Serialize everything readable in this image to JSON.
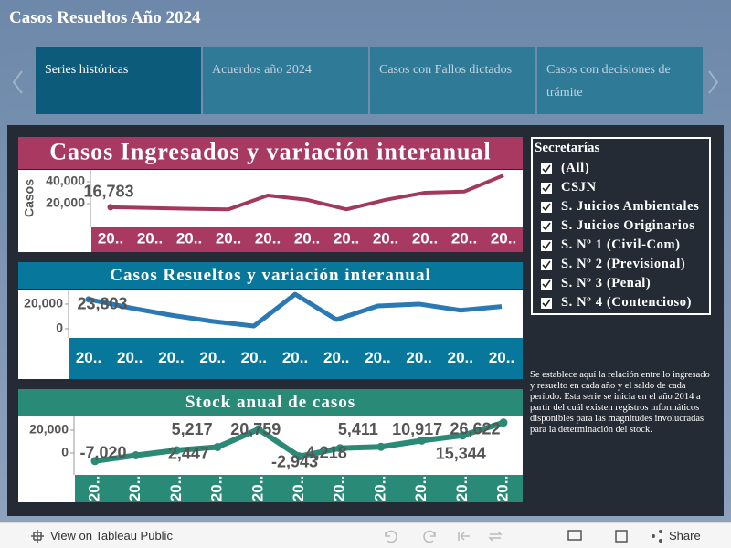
{
  "title": "Casos Resueltos Año 2024",
  "tabs": [
    "Series históricas",
    "Acuerdos  año 2024",
    "Casos con Fallos dictados",
    "Casos con decisiones de trámite"
  ],
  "filter": {
    "title": "Secretarías",
    "items": [
      "(All)",
      "CSJN",
      "S. Juicios Ambientales",
      "S. Juicios Originarios",
      "S. Nº 1 (Civil-Com)",
      "S. Nº 2 (Previsional)",
      "S. Nº 3 (Penal)",
      "S. Nº 4 (Contencioso)"
    ]
  },
  "note": "Se establece aquí la relación entre lo ingresado y resuelto en cada año y el saldo de cada período. Esta serie se inicia en el año 2014 a partir del cuál existen registros informáticos disponibles para las magnitudes involucradas para la determinación del stock.",
  "footer": {
    "link": "View on Tableau Public",
    "share": "Share"
  },
  "chart_data": [
    {
      "type": "line",
      "title": "Casos Ingresados y variación interanual",
      "y_label": "Casos",
      "categories": [
        "20..",
        "20..",
        "20..",
        "20..",
        "20..",
        "20..",
        "20..",
        "20..",
        "20..",
        "20..",
        "20.."
      ],
      "values": [
        16783,
        16000,
        15300,
        14800,
        27500,
        23500,
        14800,
        23500,
        30000,
        31000,
        45800
      ],
      "value_labels": [
        "16,783",
        null,
        null,
        null,
        null,
        null,
        null,
        null,
        null,
        null,
        null
      ],
      "color": "#a3385f",
      "ylim": [
        0,
        50000
      ],
      "yticks": [
        {
          "value": 20000,
          "label": "20,000"
        },
        {
          "value": 40000,
          "label": "40,000"
        }
      ]
    },
    {
      "type": "line",
      "title": "Casos Resueltos y variación interanual",
      "categories": [
        "20..",
        "20..",
        "20..",
        "20..",
        "20..",
        "20..",
        "20..",
        "20..",
        "20..",
        "20..",
        "20.."
      ],
      "values": [
        23803,
        17000,
        11000,
        6000,
        2200,
        28000,
        7400,
        18500,
        20000,
        15000,
        18000
      ],
      "value_labels": [
        "23,803",
        null,
        null,
        null,
        null,
        null,
        null,
        null,
        null,
        null,
        null
      ],
      "color": "#2a78b4",
      "ylim": [
        -7500,
        31000
      ],
      "yticks": [
        0,
        {
          "value": 20000,
          "label": "20,000"
        }
      ]
    },
    {
      "type": "line",
      "title": "Stock anual de casos",
      "categories": [
        "20..",
        "20..",
        "20..",
        "20..",
        "20..",
        "20..",
        "20..",
        "20..",
        "20..",
        "20..",
        "20.."
      ],
      "values": [
        -7020,
        -2000,
        2447,
        5217,
        20759,
        -2943,
        4218,
        5411,
        10917,
        15344,
        26622
      ],
      "value_labels": [
        "-7,020",
        null,
        "2,447",
        "5,217",
        "20,759",
        "-2,943",
        "4,218",
        "5,411",
        "10,917",
        "15,344",
        "26,622"
      ],
      "color": "#2a8a76",
      "markers": true,
      "ylim": [
        -19000,
        30000
      ],
      "yticks": [
        0,
        {
          "value": 20000,
          "label": "20,000"
        }
      ]
    }
  ]
}
